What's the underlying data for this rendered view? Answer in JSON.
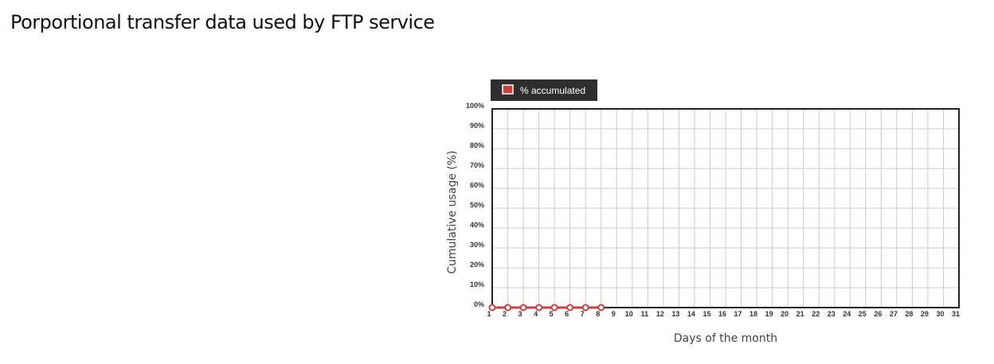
{
  "title": "Porportional transfer data used by FTP service",
  "chart_data": {
    "type": "line",
    "xlabel": "Days of the month",
    "ylabel": "Cumulative usage (%)",
    "x_ticks": [
      "1",
      "2",
      "3",
      "4",
      "5",
      "6",
      "7",
      "8",
      "9",
      "10",
      "11",
      "12",
      "13",
      "14",
      "15",
      "16",
      "17",
      "18",
      "19",
      "20",
      "21",
      "22",
      "23",
      "24",
      "25",
      "26",
      "27",
      "28",
      "29",
      "30",
      "31"
    ],
    "y_ticks": [
      "0%",
      "10%",
      "20%",
      "30%",
      "40%",
      "50%",
      "60%",
      "70%",
      "80%",
      "90%",
      "100%"
    ],
    "xlim": [
      1,
      31
    ],
    "ylim": [
      0,
      100
    ],
    "grid": true,
    "legend_placement": "top-left",
    "series": [
      {
        "name": "% accumulated",
        "color": "#c9403e",
        "x": [
          1,
          2,
          3,
          4,
          5,
          6,
          7,
          8
        ],
        "y": [
          0,
          0,
          0,
          0,
          0,
          0,
          0,
          0
        ]
      }
    ]
  }
}
